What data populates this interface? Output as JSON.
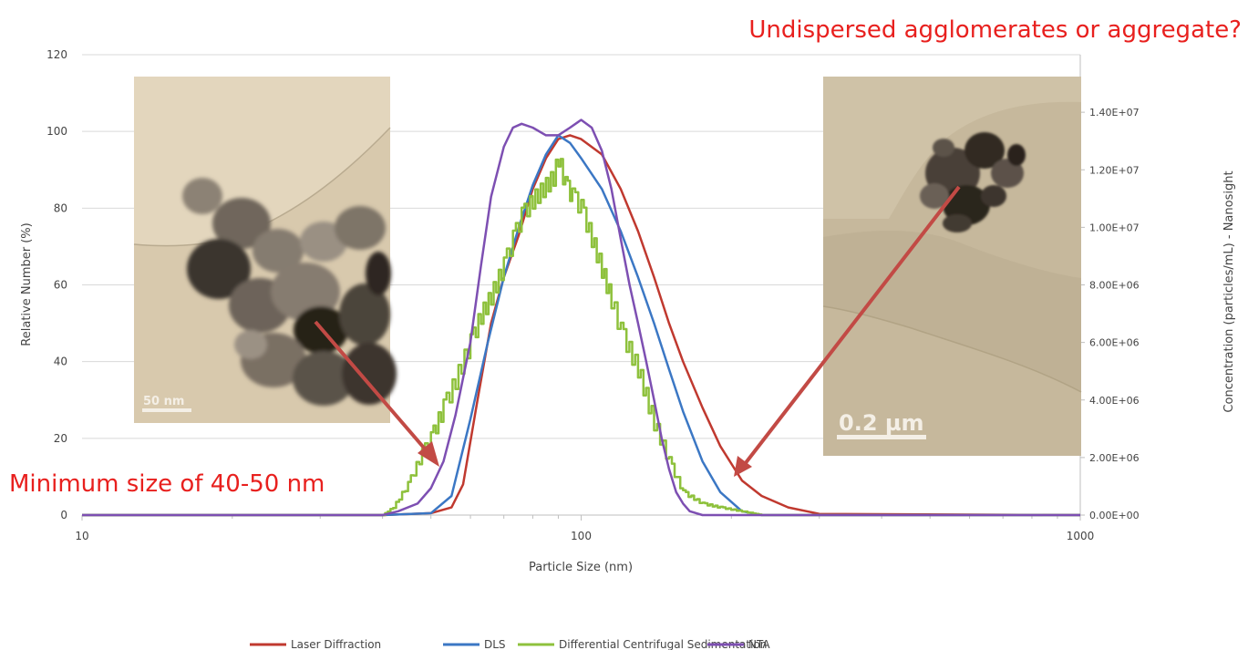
{
  "chart_data": {
    "type": "line",
    "title": "",
    "xlabel": "Particle Size (nm)",
    "ylabel": "Relative Number (%)",
    "y2label": "Concentration (particles/mL) - Nanosight",
    "x_scale": "log",
    "xlim": [
      10,
      1000
    ],
    "ylim": [
      0,
      120
    ],
    "y2lim": [
      0,
      16000000
    ],
    "x_ticks": [
      "10",
      "100",
      "1000"
    ],
    "y_ticks": [
      "0",
      "20",
      "40",
      "60",
      "80",
      "100",
      "120"
    ],
    "y2_ticks": [
      "0.00E+00",
      "2.00E+06",
      "4.00E+06",
      "6.00E+06",
      "8.00E+06",
      "1.00E+07",
      "1.20E+07",
      "1.40E+07"
    ],
    "legend_position": "bottom",
    "grid": true,
    "series": [
      {
        "name": "Laser Diffraction",
        "color": "#c0392f",
        "axis": "left",
        "x": [
          10,
          40,
          50,
          55,
          58,
          62,
          66,
          70,
          75,
          80,
          85,
          90,
          95,
          100,
          110,
          120,
          130,
          140,
          150,
          160,
          175,
          190,
          210,
          230,
          260,
          300,
          1000
        ],
        "y": [
          0,
          0,
          0.5,
          2,
          8,
          30,
          50,
          62,
          73,
          85,
          93,
          98,
          99,
          98,
          94,
          85,
          74,
          62,
          50,
          40,
          28,
          18,
          9,
          5,
          2,
          0.3,
          0
        ]
      },
      {
        "name": "DLS",
        "color": "#3b77c4",
        "axis": "left",
        "x": [
          10,
          40,
          50,
          55,
          60,
          65,
          70,
          75,
          80,
          85,
          90,
          95,
          100,
          110,
          120,
          130,
          140,
          150,
          160,
          175,
          190,
          210,
          230,
          1000
        ],
        "y": [
          0,
          0,
          0.5,
          5,
          25,
          45,
          62,
          75,
          86,
          94,
          99,
          97,
          93,
          85,
          74,
          62,
          50,
          38,
          27,
          14,
          6,
          1,
          0,
          0
        ]
      },
      {
        "name": "Differential Centrifugal Sedimentation",
        "color": "#8ec13c",
        "axis": "left",
        "x": [
          10,
          40,
          42,
          45,
          48,
          50,
          53,
          56,
          60,
          63,
          66,
          70,
          73,
          76,
          80,
          84,
          88,
          90,
          93,
          96,
          100,
          105,
          110,
          115,
          120,
          130,
          140,
          150,
          160,
          175,
          190,
          210,
          230,
          1000
        ],
        "y": [
          0,
          0,
          2,
          8,
          16,
          20,
          28,
          35,
          45,
          52,
          57,
          65,
          72,
          78,
          82,
          85,
          88,
          93,
          86,
          83,
          80,
          72,
          64,
          56,
          48,
          38,
          24,
          14,
          6,
          3,
          2,
          1,
          0,
          0
        ]
      },
      {
        "name": "NTA",
        "color": "#7d4fb2",
        "axis": "left",
        "x": [
          10,
          40,
          43,
          47,
          50,
          53,
          56,
          60,
          63,
          66,
          70,
          73,
          76,
          80,
          85,
          90,
          95,
          100,
          105,
          110,
          115,
          120,
          125,
          130,
          135,
          140,
          145,
          150,
          155,
          160,
          165,
          175,
          1000
        ],
        "y": [
          0,
          0,
          1,
          3,
          7,
          14,
          26,
          45,
          65,
          83,
          96,
          101,
          102,
          101,
          99,
          99,
          101,
          103,
          101,
          95,
          85,
          72,
          60,
          50,
          40,
          30,
          20,
          12,
          6,
          3,
          1,
          0,
          0
        ]
      }
    ],
    "annotations": [
      {
        "id": "agglomerate_note",
        "text": "Undispersed agglomerates or aggregate?"
      },
      {
        "id": "min_size_note",
        "text": "Minimum size of 40-50 nm"
      }
    ],
    "insets": [
      {
        "id": "tem_left",
        "scale_label": "50 nm"
      },
      {
        "id": "tem_right",
        "scale_label": "0.2 µm"
      }
    ]
  }
}
